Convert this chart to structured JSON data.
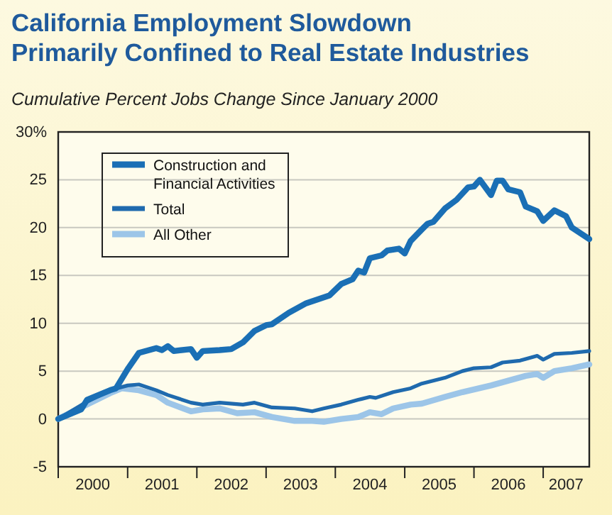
{
  "chart_data": {
    "type": "line",
    "title": "California Employment Slowdown\nPrimarily Confined to Real Estate Industries",
    "subtitle": "Cumulative Percent Jobs Change Since January 2000",
    "series": [
      {
        "name": "Construction and Financial Activities",
        "color": "#1a6fb5",
        "x": [
          "2000-01",
          "2000-05",
          "2000-06",
          "2000-08",
          "2000-10",
          "2000-11",
          "2001-01",
          "2001-03",
          "2001-06",
          "2001-07",
          "2001-08",
          "2001-09",
          "2001-12",
          "2002-01",
          "2002-02",
          "2002-05",
          "2002-07",
          "2002-09",
          "2002-11",
          "2003-01",
          "2003-02",
          "2003-05",
          "2003-08",
          "2003-12",
          "2004-02",
          "2004-04",
          "2004-05",
          "2004-06",
          "2004-07",
          "2004-09",
          "2004-10",
          "2004-12",
          "2005-01",
          "2005-02",
          "2005-04",
          "2005-05",
          "2005-06",
          "2005-08",
          "2005-10",
          "2005-12",
          "2006-01",
          "2006-02",
          "2006-04",
          "2006-05",
          "2006-06",
          "2006-07",
          "2006-09",
          "2006-10",
          "2006-12",
          "2007-01",
          "2007-03",
          "2007-05",
          "2007-06",
          "2007-09"
        ],
        "values": [
          0,
          1.0,
          2.0,
          2.5,
          3.0,
          3.2,
          5.2,
          6.9,
          7.4,
          7.2,
          7.6,
          7.1,
          7.3,
          6.4,
          7.1,
          7.2,
          7.3,
          8.0,
          9.2,
          9.8,
          9.9,
          11.1,
          12.1,
          12.9,
          14.1,
          14.6,
          15.5,
          15.3,
          16.8,
          17.1,
          17.6,
          17.8,
          17.3,
          18.6,
          19.8,
          20.4,
          20.6,
          22.0,
          22.9,
          24.2,
          24.3,
          25.0,
          23.4,
          24.9,
          24.9,
          24.0,
          23.7,
          22.2,
          21.7,
          20.7,
          21.8,
          21.2,
          20.0,
          18.8
        ]
      },
      {
        "name": "Total",
        "color": "#1f6aae",
        "x": [
          "2000-01",
          "2000-06",
          "2000-10",
          "2001-01",
          "2001-03",
          "2001-06",
          "2001-08",
          "2001-12",
          "2002-02",
          "2002-05",
          "2002-09",
          "2002-11",
          "2003-02",
          "2003-06",
          "2003-09",
          "2003-11",
          "2004-02",
          "2004-05",
          "2004-07",
          "2004-08",
          "2004-11",
          "2005-02",
          "2005-04",
          "2005-08",
          "2005-11",
          "2006-01",
          "2006-04",
          "2006-06",
          "2006-09",
          "2006-12",
          "2007-01",
          "2007-03",
          "2007-06",
          "2007-09"
        ],
        "values": [
          0,
          1.8,
          3.0,
          3.5,
          3.6,
          3.0,
          2.5,
          1.7,
          1.5,
          1.7,
          1.5,
          1.7,
          1.2,
          1.1,
          0.8,
          1.1,
          1.5,
          2.0,
          2.3,
          2.2,
          2.8,
          3.2,
          3.7,
          4.3,
          5.0,
          5.3,
          5.4,
          5.9,
          6.1,
          6.6,
          6.2,
          6.8,
          6.9,
          7.1
        ]
      },
      {
        "name": "All Other",
        "color": "#9cc5e8",
        "x": [
          "2000-01",
          "2000-06",
          "2000-10",
          "2000-12",
          "2001-03",
          "2001-06",
          "2001-08",
          "2001-12",
          "2002-02",
          "2002-05",
          "2002-08",
          "2002-11",
          "2003-02",
          "2003-06",
          "2003-09",
          "2003-11",
          "2004-02",
          "2004-05",
          "2004-07",
          "2004-09",
          "2004-11",
          "2005-02",
          "2005-04",
          "2005-08",
          "2005-11",
          "2006-04",
          "2006-07",
          "2006-10",
          "2006-12",
          "2007-01",
          "2007-03",
          "2007-06",
          "2007-09"
        ],
        "values": [
          0,
          1.5,
          2.7,
          3.2,
          3.0,
          2.5,
          1.7,
          0.8,
          1.0,
          1.1,
          0.6,
          0.7,
          0.2,
          -0.2,
          -0.2,
          -0.3,
          0,
          0.2,
          0.7,
          0.5,
          1.1,
          1.5,
          1.6,
          2.3,
          2.8,
          3.5,
          4.0,
          4.5,
          4.7,
          4.3,
          5.0,
          5.3,
          5.7
        ]
      }
    ],
    "xlim": [
      "2000-01",
      "2007-09"
    ],
    "xticks": [
      {
        "value": "2000-01",
        "label": null
      },
      {
        "value": "2000-07",
        "label": "2000"
      },
      {
        "value": "2001-01",
        "label": null
      },
      {
        "value": "2001-07",
        "label": "2001"
      },
      {
        "value": "2002-01",
        "label": null
      },
      {
        "value": "2002-07",
        "label": "2002"
      },
      {
        "value": "2003-01",
        "label": null
      },
      {
        "value": "2003-07",
        "label": "2003"
      },
      {
        "value": "2004-01",
        "label": null
      },
      {
        "value": "2004-07",
        "label": "2004"
      },
      {
        "value": "2005-01",
        "label": null
      },
      {
        "value": "2005-07",
        "label": "2005"
      },
      {
        "value": "2006-01",
        "label": null
      },
      {
        "value": "2006-07",
        "label": "2006"
      },
      {
        "value": "2007-01",
        "label": null
      },
      {
        "value": "2007-05",
        "label": "2007"
      }
    ],
    "ylim": [
      -5,
      30
    ],
    "yticks": [
      -5,
      0,
      5,
      10,
      15,
      20,
      25,
      {
        "value": 30,
        "label": "30%"
      }
    ],
    "grid": "y",
    "legend": "top left",
    "line_style": "solid",
    "marker": "none"
  }
}
